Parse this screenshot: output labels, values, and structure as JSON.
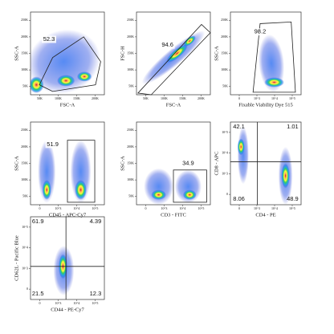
{
  "panels": [
    {
      "x_label": "FSC-A",
      "y_label": "SSC-A",
      "gates": [
        "52.3"
      ],
      "x_ticks": [
        "50K",
        "100K",
        "150K",
        "200K"
      ],
      "y_ticks": [
        "250K",
        "200K",
        "150K",
        "100K",
        "50K"
      ]
    },
    {
      "x_label": "FSC-A",
      "y_label": "FSC-H",
      "gates": [
        "94.6"
      ],
      "x_ticks": [
        "50K",
        "100K",
        "150K",
        "200K"
      ],
      "y_ticks": [
        "250K",
        "200K",
        "150K",
        "100K",
        "50K"
      ]
    },
    {
      "x_label": "Fixable Viability Dye 515",
      "y_label": "SSC-A",
      "gates": [
        "98.2"
      ],
      "x_ticks": [
        "0",
        "10^3",
        "10^4",
        "10^5"
      ],
      "y_ticks": [
        "250K",
        "200K",
        "150K",
        "100K",
        "50K"
      ]
    },
    {
      "x_label": "CD45 - APC-Cy7",
      "y_label": "SSC-A",
      "gates": [
        "51.9"
      ],
      "x_ticks": [
        "0",
        "10^3",
        "10^4",
        "10^5"
      ],
      "y_ticks": [
        "250K",
        "200K",
        "150K",
        "100K",
        "50K"
      ]
    },
    {
      "x_label": "CD3 - FITC",
      "y_label": "SSC-A",
      "gates": [
        "34.9"
      ],
      "x_ticks": [
        "0",
        "10^3",
        "10^4",
        "10^5"
      ],
      "y_ticks": [
        "250K",
        "200K",
        "150K",
        "100K",
        "50K"
      ]
    },
    {
      "x_label": "CD4 - PE",
      "y_label": "CD8 - APC",
      "gates": [
        "42.1",
        "1.01",
        "8.06",
        "48.9"
      ],
      "x_ticks": [
        "0",
        "10^3",
        "10^4",
        "10^5"
      ],
      "y_ticks": [
        "10^5",
        "10^4",
        "10^3",
        "0"
      ]
    },
    {
      "x_label": "CD44 - PE-Cy7",
      "y_label": "CD62L - Pacific Blue",
      "gates": [
        "61.9",
        "4.39",
        "21.5",
        "12.3"
      ],
      "x_ticks": [
        "0",
        "10^3",
        "10^4",
        "10^5"
      ],
      "y_ticks": [
        "10^5",
        "10^4",
        "10^3",
        "0"
      ]
    }
  ]
}
